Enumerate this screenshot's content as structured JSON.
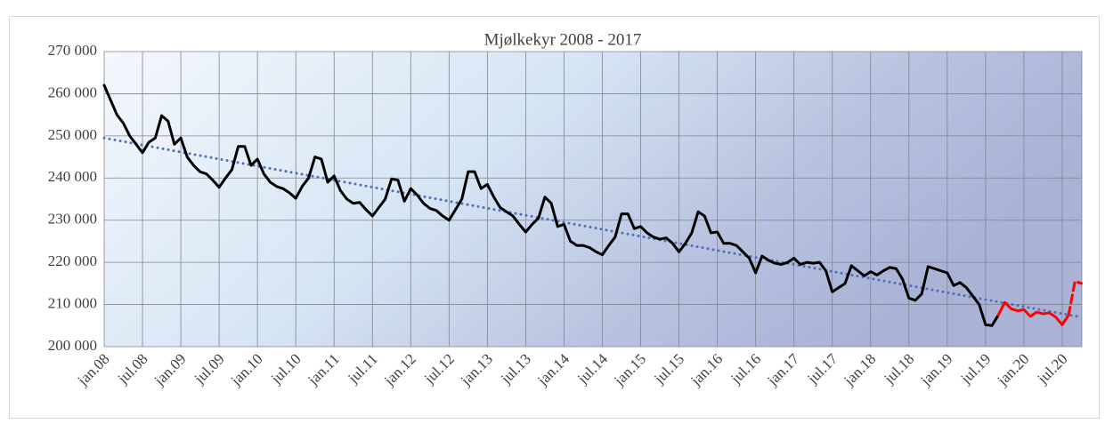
{
  "chart_data": {
    "type": "line",
    "title": "Mjølkekyr 2008 - 2017",
    "categories": [
      "jan.08",
      null,
      null,
      null,
      null,
      null,
      "jul.08",
      null,
      null,
      null,
      null,
      null,
      "jan.09",
      null,
      null,
      null,
      null,
      null,
      "jul.09",
      null,
      null,
      null,
      null,
      null,
      "jan.10",
      null,
      null,
      null,
      null,
      null,
      "jul.10",
      null,
      null,
      null,
      null,
      null,
      "jan.11",
      null,
      null,
      null,
      null,
      null,
      "jul.11",
      null,
      null,
      null,
      null,
      null,
      "jan.12",
      null,
      null,
      null,
      null,
      null,
      "jul.12",
      null,
      null,
      null,
      null,
      null,
      "jan.13",
      null,
      null,
      null,
      null,
      null,
      "jul.13",
      null,
      null,
      null,
      null,
      null,
      "jan.14",
      null,
      null,
      null,
      null,
      null,
      "jul.14",
      null,
      null,
      null,
      null,
      null,
      "jan.15",
      null,
      null,
      null,
      null,
      null,
      "jul.15",
      null,
      null,
      null,
      null,
      null,
      "jan.16",
      null,
      null,
      null,
      null,
      null,
      "jul.16",
      null,
      null,
      null,
      null,
      null,
      "jan.17",
      null,
      null,
      null,
      null,
      null,
      "jul.17",
      null,
      null,
      null,
      null,
      null,
      "jan.18",
      null,
      null,
      null,
      null,
      null,
      "jul.18",
      null,
      null,
      null,
      null,
      null,
      "jan.19",
      null,
      null,
      null,
      null,
      null,
      "jul.19",
      null,
      null,
      null,
      null,
      null,
      "jan.20",
      null,
      null,
      null,
      null,
      null,
      "jul.20",
      null,
      null,
      null
    ],
    "series": [
      {
        "color": "#000000",
        "dash": "solid",
        "values": [
          262000,
          258500,
          255000,
          253000,
          250000,
          248000,
          246000,
          248500,
          249500,
          254800,
          253500,
          248000,
          249500,
          245000,
          243000,
          241500,
          241000,
          239500,
          237800,
          240000,
          242000,
          247500,
          247500,
          243000,
          244500,
          241000,
          239000,
          238000,
          237500,
          236500,
          235200,
          238000,
          240000,
          245000,
          244500,
          239000,
          240500,
          237000,
          235000,
          234000,
          234200,
          232500,
          231000,
          233000,
          235000,
          239800,
          239500,
          234500,
          237500,
          236000,
          234000,
          232800,
          232300,
          231000,
          230000,
          232500,
          235000,
          241500,
          241500,
          237500,
          238500,
          235500,
          233000,
          232000,
          231000,
          229000,
          227200,
          229000,
          230500,
          235500,
          234000,
          228500,
          229000,
          225000,
          224000,
          224000,
          223500,
          222500,
          221800,
          224000,
          226000,
          231500,
          231500,
          228000,
          228500,
          227000,
          226000,
          225500,
          225800,
          224500,
          222500,
          224500,
          227000,
          232000,
          231000,
          227000,
          227200,
          224500,
          224500,
          224000,
          222500,
          221000,
          217500,
          221500,
          220500,
          219800,
          219500,
          220000,
          221000,
          219500,
          220000,
          219800,
          220000,
          218000,
          213000,
          214000,
          215000,
          219200,
          218000,
          216800,
          217800,
          217000,
          218000,
          218800,
          218500,
          216000,
          211500,
          211000,
          212500,
          219000,
          218500,
          218000,
          217500,
          214500,
          215200,
          214000,
          212000,
          210000,
          205200,
          205000,
          207500,
          null,
          null,
          null,
          null,
          null,
          null,
          null,
          null,
          null,
          null,
          null,
          null,
          null
        ]
      },
      {
        "color": "#ff0000",
        "dash": "solid",
        "values": [
          null,
          null,
          null,
          null,
          null,
          null,
          null,
          null,
          null,
          null,
          null,
          null,
          null,
          null,
          null,
          null,
          null,
          null,
          null,
          null,
          null,
          null,
          null,
          null,
          null,
          null,
          null,
          null,
          null,
          null,
          null,
          null,
          null,
          null,
          null,
          null,
          null,
          null,
          null,
          null,
          null,
          null,
          null,
          null,
          null,
          null,
          null,
          null,
          null,
          null,
          null,
          null,
          null,
          null,
          null,
          null,
          null,
          null,
          null,
          null,
          null,
          null,
          null,
          null,
          null,
          null,
          null,
          null,
          null,
          null,
          null,
          null,
          null,
          null,
          null,
          null,
          null,
          null,
          null,
          null,
          null,
          null,
          null,
          null,
          null,
          null,
          null,
          null,
          null,
          null,
          null,
          null,
          null,
          null,
          null,
          null,
          null,
          null,
          null,
          null,
          null,
          null,
          null,
          null,
          null,
          null,
          null,
          null,
          null,
          null,
          null,
          null,
          null,
          null,
          null,
          null,
          null,
          null,
          null,
          null,
          null,
          null,
          null,
          null,
          null,
          null,
          null,
          null,
          null,
          null,
          null,
          null,
          null,
          null,
          null,
          null,
          null,
          null,
          null,
          null,
          207500,
          210500,
          209000,
          208500,
          208800,
          207200,
          208200,
          207800,
          208000,
          207000,
          205200,
          207500,
          null,
          null
        ]
      },
      {
        "color": "#ff0000",
        "dash": "dashed",
        "values": [
          null,
          null,
          null,
          null,
          null,
          null,
          null,
          null,
          null,
          null,
          null,
          null,
          null,
          null,
          null,
          null,
          null,
          null,
          null,
          null,
          null,
          null,
          null,
          null,
          null,
          null,
          null,
          null,
          null,
          null,
          null,
          null,
          null,
          null,
          null,
          null,
          null,
          null,
          null,
          null,
          null,
          null,
          null,
          null,
          null,
          null,
          null,
          null,
          null,
          null,
          null,
          null,
          null,
          null,
          null,
          null,
          null,
          null,
          null,
          null,
          null,
          null,
          null,
          null,
          null,
          null,
          null,
          null,
          null,
          null,
          null,
          null,
          null,
          null,
          null,
          null,
          null,
          null,
          null,
          null,
          null,
          null,
          null,
          null,
          null,
          null,
          null,
          null,
          null,
          null,
          null,
          null,
          null,
          null,
          null,
          null,
          null,
          null,
          null,
          null,
          null,
          null,
          null,
          null,
          null,
          null,
          null,
          null,
          null,
          null,
          null,
          null,
          null,
          null,
          null,
          null,
          null,
          null,
          null,
          null,
          null,
          null,
          null,
          null,
          null,
          null,
          null,
          null,
          null,
          null,
          null,
          null,
          null,
          null,
          null,
          null,
          null,
          null,
          null,
          null,
          null,
          null,
          null,
          null,
          null,
          null,
          null,
          null,
          null,
          null,
          null,
          207500,
          215500,
          215000
        ]
      }
    ],
    "trendline": {
      "color": "#4f6fb8",
      "values": [
        249500,
        207000
      ]
    },
    "ylim": [
      200000,
      270000
    ],
    "yticks": [
      {
        "value": 200000,
        "label": "200 000"
      },
      {
        "value": 210000,
        "label": "210 000"
      },
      {
        "value": 220000,
        "label": "220 000"
      },
      {
        "value": 230000,
        "label": "230 000"
      },
      {
        "value": 240000,
        "label": "240 000"
      },
      {
        "value": 250000,
        "label": "250 000"
      },
      {
        "value": 260000,
        "label": "260 000"
      },
      {
        "value": 270000,
        "label": "270 000"
      }
    ],
    "grid": true
  }
}
